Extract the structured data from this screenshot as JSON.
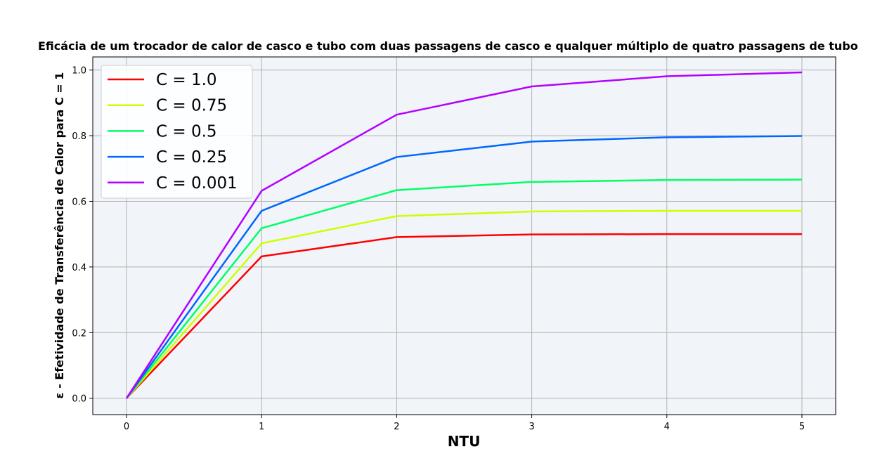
{
  "chart_data": {
    "type": "line",
    "title": "Eficácia de um trocador de calor de casco e tubo com duas passagens de casco e qualquer múltiplo de quatro passagens de tubo",
    "xlabel": "NTU",
    "ylabel": "ε - Efetividade de Transferência de Calor para C = 1",
    "x": [
      0,
      1,
      2,
      3,
      4,
      5
    ],
    "xlim": [
      -0.25,
      5.25
    ],
    "ylim": [
      -0.05,
      1.04
    ],
    "xticks": [
      "0",
      "1",
      "2",
      "3",
      "4",
      "5"
    ],
    "yticks": [
      "0.0",
      "0.2",
      "0.4",
      "0.6",
      "0.8",
      "1.0"
    ],
    "grid": true,
    "legend_position": "top-left",
    "background": "#f1f5fa",
    "series": [
      {
        "name": "C = 1.0",
        "color": "#ff0000",
        "values": [
          0,
          0.432,
          0.491,
          0.499,
          0.5,
          0.5
        ]
      },
      {
        "name": "C = 0.75",
        "color": "#ccff00",
        "values": [
          0,
          0.472,
          0.555,
          0.569,
          0.571,
          0.571
        ]
      },
      {
        "name": "C = 0.5",
        "color": "#00ff66",
        "values": [
          0,
          0.518,
          0.634,
          0.659,
          0.665,
          0.666
        ]
      },
      {
        "name": "C = 0.25",
        "color": "#0066ff",
        "values": [
          0,
          0.571,
          0.735,
          0.782,
          0.795,
          0.799
        ]
      },
      {
        "name": "C = 0.001",
        "color": "#b300ff",
        "values": [
          0,
          0.632,
          0.864,
          0.95,
          0.981,
          0.993
        ]
      }
    ]
  }
}
